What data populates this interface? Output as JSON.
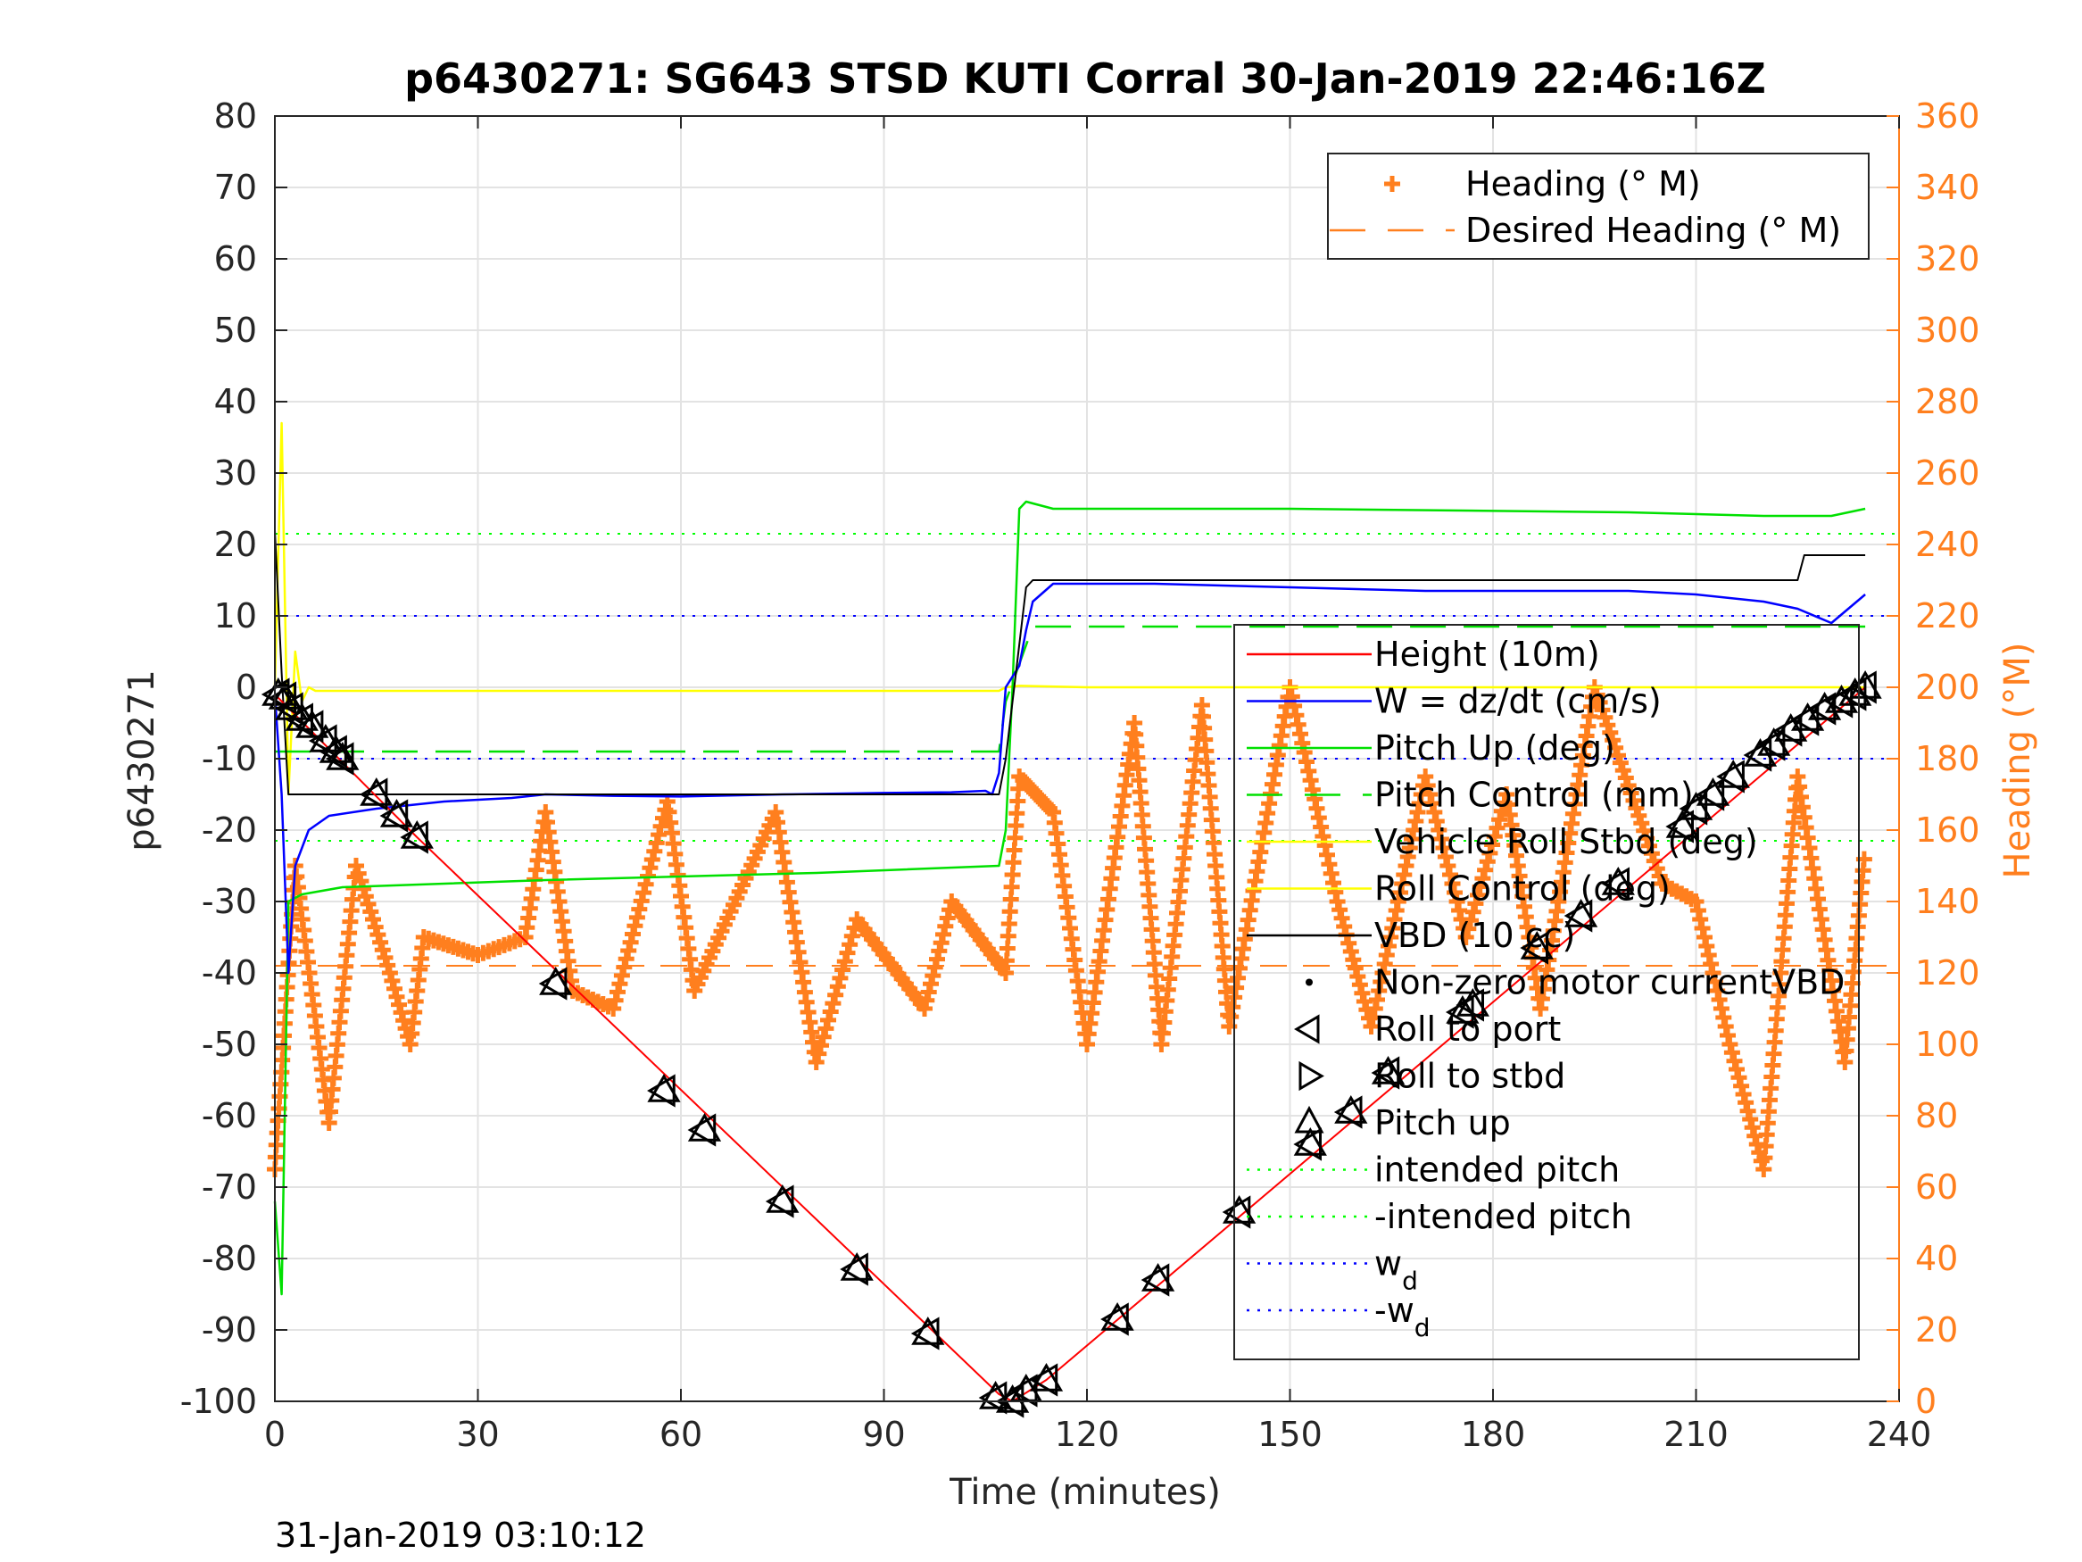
{
  "chart_data": {
    "type": "line",
    "title": "p6430271: SG643 STSD KUTI Corral 30-Jan-2019 22:46:16Z",
    "xlabel": "Time (minutes)",
    "ylabel": "p6430271",
    "y2label": "Heading (°M)",
    "footer": "31-Jan-2019 03:10:12",
    "xlim": [
      0,
      240
    ],
    "ylim": [
      -100,
      80
    ],
    "y2lim": [
      0,
      360
    ],
    "grid": true,
    "xticks": [
      0,
      30,
      60,
      90,
      120,
      150,
      180,
      210,
      240
    ],
    "yticks": [
      -100,
      -90,
      -80,
      -70,
      -60,
      -50,
      -40,
      -30,
      -20,
      -10,
      0,
      10,
      20,
      30,
      40,
      50,
      60,
      70,
      80
    ],
    "y2ticks": [
      0,
      20,
      40,
      60,
      80,
      100,
      120,
      140,
      160,
      180,
      200,
      220,
      240,
      260,
      280,
      300,
      320,
      340,
      360
    ],
    "colors": {
      "height": "#ff0000",
      "w": "#0000ff",
      "pitch_up": "#00e000",
      "pitch_control": "#00e000",
      "roll": "#ffff00",
      "vbd": "#000000",
      "heading": "#ff7f1e",
      "axis_right": "#ff7f1e",
      "intended": "#00ff00",
      "wd": "#0000ff"
    },
    "legend_heading": [
      {
        "label": "Heading (° M)",
        "marker": "plus",
        "color": "#ff7f1e"
      },
      {
        "label": "Desired Heading (° M)",
        "marker": "dash",
        "color": "#ff7f1e"
      }
    ],
    "legend_main": [
      {
        "label": "Height (10m)",
        "marker": "line",
        "color": "#ff0000"
      },
      {
        "label": "W = dz/dt (cm/s)",
        "marker": "line",
        "color": "#0000ff"
      },
      {
        "label": "Pitch Up (deg)",
        "marker": "line",
        "color": "#00e000"
      },
      {
        "label": "Pitch Control (mm)",
        "marker": "dash",
        "color": "#00e000"
      },
      {
        "label": "Vehicle Roll Stbd (deg)",
        "marker": "line",
        "color": "#ffff00"
      },
      {
        "label": "Roll Control (deg)",
        "marker": "line",
        "color": "#ffff00"
      },
      {
        "label": "VBD (10 cc)",
        "marker": "line",
        "color": "#000000"
      },
      {
        "label": "Non-zero motor currentVBD",
        "marker": "dot",
        "color": "#000000"
      },
      {
        "label": "Roll to port",
        "marker": "tri-left",
        "color": "#000000"
      },
      {
        "label": "Roll to stbd",
        "marker": "tri-right",
        "color": "#000000"
      },
      {
        "label": "Pitch up",
        "marker": "tri-up",
        "color": "#000000"
      },
      {
        "label": "intended pitch",
        "marker": "dot-line",
        "color": "#00ff00"
      },
      {
        "label": "-intended pitch",
        "marker": "dot-line",
        "color": "#00ff00"
      },
      {
        "label": "w",
        "sub": "d",
        "marker": "dot-line",
        "color": "#0000ff"
      },
      {
        "label": "-w",
        "sub": "d",
        "marker": "dot-line",
        "color": "#0000ff"
      }
    ],
    "series": {
      "height": {
        "x": [
          0,
          21,
          107,
          109,
          114,
          235
        ],
        "y": [
          -1,
          -21,
          -99,
          -100,
          -97,
          0
        ]
      },
      "w": {
        "x": [
          0,
          1,
          2,
          3,
          5,
          8,
          15,
          25,
          35,
          40,
          50,
          60,
          75,
          90,
          100,
          105,
          106,
          107,
          108,
          110,
          111,
          112,
          115,
          130,
          150,
          170,
          180,
          200,
          210,
          220,
          225,
          230,
          235
        ],
        "y": [
          -1,
          -15,
          -40,
          -25,
          -20,
          -18,
          -17,
          -16,
          -15.5,
          -15,
          -15.2,
          -15.3,
          -15,
          -14.8,
          -14.7,
          -14.5,
          -15,
          -12,
          0,
          3,
          8,
          12,
          14.5,
          14.5,
          14,
          13.5,
          13.5,
          13.5,
          13,
          12,
          11,
          9,
          13
        ]
      },
      "pitch_up": {
        "x": [
          0,
          1,
          2,
          4,
          10,
          40,
          80,
          107,
          108,
          109,
          110,
          111,
          115,
          150,
          200,
          220,
          230,
          235
        ],
        "y": [
          -72,
          -85,
          -30,
          -29,
          -28,
          -27,
          -26,
          -25,
          -20,
          0,
          25,
          26,
          25,
          25,
          24.5,
          24,
          24,
          25
        ]
      },
      "pitch_control": {
        "x": [
          0,
          107,
          108,
          112,
          235
        ],
        "y": [
          -9,
          -9,
          -2,
          8.5,
          8.5
        ]
      },
      "roll": {
        "x": [
          0,
          1,
          2,
          3,
          4,
          5,
          6,
          10,
          100,
          107,
          108,
          110,
          120,
          200,
          235
        ],
        "y": [
          0,
          37,
          -15,
          5,
          -2,
          0,
          -0.5,
          -0.5,
          -0.5,
          -0.5,
          0,
          0.2,
          0,
          0,
          0
        ]
      },
      "vbd": {
        "x": [
          0,
          1,
          2,
          107,
          108,
          111,
          112,
          225,
          226,
          235
        ],
        "y": [
          22,
          2,
          -15,
          -15,
          -10,
          14,
          15,
          15,
          18.5,
          18.5
        ]
      },
      "heading": {
        "x": [
          0,
          3,
          8,
          12,
          17,
          20,
          22,
          30,
          37,
          40,
          44,
          50,
          58,
          62,
          74,
          80,
          86,
          96,
          100,
          108,
          110,
          115,
          120,
          127,
          131,
          137,
          141,
          150,
          157,
          162,
          170,
          176,
          182,
          187,
          195,
          205,
          210,
          215,
          220,
          225,
          232,
          235
        ],
        "y": [
          65,
          150,
          78,
          150,
          120,
          100,
          130,
          125,
          130,
          165,
          115,
          110,
          168,
          115,
          165,
          95,
          135,
          110,
          140,
          120,
          175,
          165,
          100,
          190,
          100,
          195,
          105,
          200,
          140,
          105,
          175,
          130,
          170,
          110,
          200,
          145,
          140,
          100,
          65,
          175,
          95,
          155
        ]
      },
      "intended_pitch": 21.5,
      "neg_intended_pitch": -21.5,
      "wd": 10,
      "neg_wd": -10,
      "desired_heading": 122
    },
    "markers": {
      "x": [
        0.5,
        1.5,
        2.5,
        4,
        5.5,
        7.5,
        9,
        10,
        15,
        18,
        21,
        41.5,
        57.5,
        63.5,
        75,
        86,
        96.5,
        106.5,
        109,
        111,
        114,
        124.5,
        130.5,
        142.5,
        153,
        159,
        164.5,
        175.5,
        177,
        186.5,
        193,
        198.5,
        208,
        210,
        212.5,
        215.5,
        219.5,
        221.5,
        224,
        226.5,
        229,
        231.5,
        233.5,
        235
      ],
      "y": [
        -1,
        -1.5,
        -3,
        -4.5,
        -5.5,
        -7.5,
        -9,
        -10,
        -15,
        -18,
        -21,
        -41.5,
        -56.5,
        -62,
        -72,
        -81.5,
        -90.5,
        -99.5,
        -100,
        -98.5,
        -97,
        -88.5,
        -83,
        -73.5,
        -64,
        -59.5,
        -54,
        -45.5,
        -44.5,
        -36.5,
        -32,
        -27.5,
        -19.5,
        -17,
        -15,
        -12.5,
        -9.5,
        -8,
        -6,
        -4.5,
        -3,
        -2,
        -1,
        0
      ]
    }
  }
}
